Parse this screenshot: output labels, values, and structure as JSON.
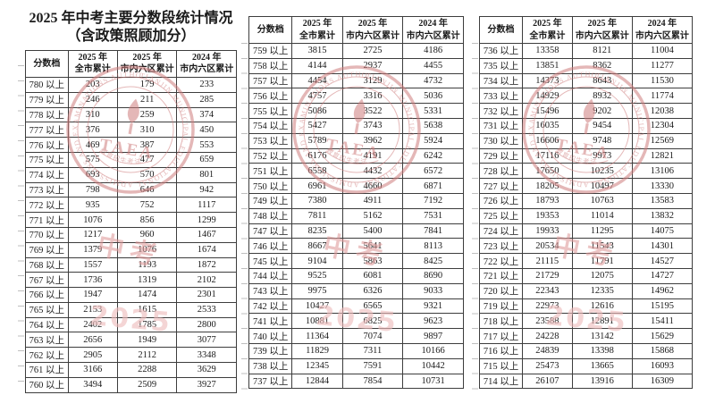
{
  "title": {
    "line1": "2025 年中考主要分数段统计情况",
    "line2": "（含政策照顾加分）"
  },
  "header": {
    "col1": "分数档",
    "col2_line1": "2025 年",
    "col2_line2": "全市累计",
    "col3_line1": "2025 年",
    "col3_line2": "市内六区累计",
    "col4_line1": "2024 年",
    "col4_line2": "市内六区累计"
  },
  "watermark": {
    "ring_text": "TIANJIN MUNICIPAL EDUCATIONAL ADMISSIONS AND EXAMINATIONS AUTHORITY",
    "center_text": "TAEA",
    "arc_text": "教育招生考试",
    "stamp_text_primary": "中考",
    "stamp_text_year": "2025",
    "seal_color": "#cf7e7e",
    "stamp_color": "#e09b9b",
    "year_color": "#eebcbc"
  },
  "tables": [
    {
      "rows": [
        [
          "780 以上",
          "203",
          "179",
          "233"
        ],
        [
          "779 以上",
          "246",
          "211",
          "285"
        ],
        [
          "778 以上",
          "310",
          "259",
          "374"
        ],
        [
          "777 以上",
          "376",
          "310",
          "450"
        ],
        [
          "776 以上",
          "469",
          "387",
          "553"
        ],
        [
          "775 以上",
          "575",
          "477",
          "659"
        ],
        [
          "774 以上",
          "693",
          "570",
          "801"
        ],
        [
          "773 以上",
          "798",
          "646",
          "942"
        ],
        [
          "772 以上",
          "935",
          "752",
          "1117"
        ],
        [
          "771 以上",
          "1076",
          "856",
          "1299"
        ],
        [
          "770 以上",
          "1217",
          "960",
          "1467"
        ],
        [
          "769 以上",
          "1379",
          "1076",
          "1674"
        ],
        [
          "768 以上",
          "1557",
          "1193",
          "1872"
        ],
        [
          "767 以上",
          "1736",
          "1319",
          "2102"
        ],
        [
          "766 以上",
          "1947",
          "1474",
          "2301"
        ],
        [
          "765 以上",
          "2153",
          "1615",
          "2533"
        ],
        [
          "764 以上",
          "2402",
          "1785",
          "2800"
        ],
        [
          "763 以上",
          "2656",
          "1949",
          "3077"
        ],
        [
          "762 以上",
          "2905",
          "2112",
          "3348"
        ],
        [
          "761 以上",
          "3166",
          "2288",
          "3629"
        ],
        [
          "760 以上",
          "3494",
          "2509",
          "3927"
        ]
      ]
    },
    {
      "rows": [
        [
          "759 以上",
          "3815",
          "2725",
          "4186"
        ],
        [
          "758 以上",
          "4144",
          "2937",
          "4455"
        ],
        [
          "757 以上",
          "4454",
          "3129",
          "4732"
        ],
        [
          "756 以上",
          "4757",
          "3316",
          "5036"
        ],
        [
          "755 以上",
          "5086",
          "3522",
          "5331"
        ],
        [
          "754 以上",
          "5427",
          "3743",
          "5638"
        ],
        [
          "753 以上",
          "5789",
          "3962",
          "5924"
        ],
        [
          "752 以上",
          "6176",
          "4191",
          "6242"
        ],
        [
          "751 以上",
          "6558",
          "4432",
          "6572"
        ],
        [
          "750 以上",
          "6961",
          "4660",
          "6871"
        ],
        [
          "749 以上",
          "7380",
          "4911",
          "7192"
        ],
        [
          "748 以上",
          "7811",
          "5162",
          "7531"
        ],
        [
          "747 以上",
          "8235",
          "5400",
          "7841"
        ],
        [
          "746 以上",
          "8667",
          "5641",
          "8113"
        ],
        [
          "745 以上",
          "9104",
          "5863",
          "8425"
        ],
        [
          "744 以上",
          "9525",
          "6081",
          "8690"
        ],
        [
          "743 以上",
          "9975",
          "6326",
          "9033"
        ],
        [
          "742 以上",
          "10427",
          "6565",
          "9321"
        ],
        [
          "741 以上",
          "10881",
          "6825",
          "9623"
        ],
        [
          "740 以上",
          "11364",
          "7074",
          "9897"
        ],
        [
          "739 以上",
          "11829",
          "7311",
          "10166"
        ],
        [
          "738 以上",
          "12345",
          "7591",
          "10442"
        ],
        [
          "737 以上",
          "12844",
          "7854",
          "10731"
        ]
      ]
    },
    {
      "rows": [
        [
          "736 以上",
          "13358",
          "8121",
          "11004"
        ],
        [
          "735 以上",
          "13851",
          "8362",
          "11277"
        ],
        [
          "734 以上",
          "14373",
          "8643",
          "11530"
        ],
        [
          "733 以上",
          "14929",
          "8932",
          "11774"
        ],
        [
          "732 以上",
          "15496",
          "9202",
          "12038"
        ],
        [
          "731 以上",
          "16035",
          "9454",
          "12304"
        ],
        [
          "730 以上",
          "16606",
          "9748",
          "12569"
        ],
        [
          "729 以上",
          "17116",
          "9973",
          "12821"
        ],
        [
          "728 以上",
          "17650",
          "10235",
          "13106"
        ],
        [
          "727 以上",
          "18205",
          "10497",
          "13330"
        ],
        [
          "726 以上",
          "18793",
          "10763",
          "13583"
        ],
        [
          "725 以上",
          "19353",
          "11014",
          "13832"
        ],
        [
          "724 以上",
          "19933",
          "11295",
          "14075"
        ],
        [
          "723 以上",
          "20534",
          "11543",
          "14301"
        ],
        [
          "722 以上",
          "21115",
          "11791",
          "14527"
        ],
        [
          "721 以上",
          "21729",
          "12075",
          "14727"
        ],
        [
          "720 以上",
          "22343",
          "12335",
          "14962"
        ],
        [
          "719 以上",
          "22973",
          "12616",
          "15195"
        ],
        [
          "718 以上",
          "23588",
          "12891",
          "15411"
        ],
        [
          "717 以上",
          "24228",
          "13142",
          "15629"
        ],
        [
          "716 以上",
          "24839",
          "13398",
          "15868"
        ],
        [
          "715 以上",
          "25473",
          "13665",
          "16093"
        ],
        [
          "714 以上",
          "26107",
          "13916",
          "16309"
        ]
      ]
    }
  ]
}
